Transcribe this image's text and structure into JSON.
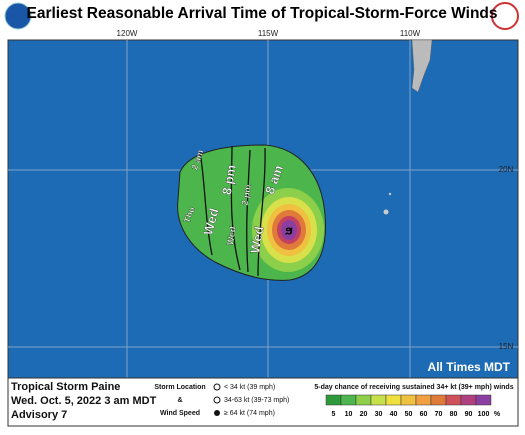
{
  "header": {
    "title": "Earliest Reasonable Arrival Time of Tropical-Storm-Force Winds"
  },
  "map": {
    "lon_labels": [
      "120W",
      "115W",
      "110W"
    ],
    "lat_labels": [
      "20N",
      "15N"
    ],
    "contours": [
      {
        "day": "Thu",
        "time": "2 am"
      },
      {
        "day": "Wed",
        "time": "8 pm"
      },
      {
        "day": "Wed",
        "time": "2 pm"
      },
      {
        "day": "Wed",
        "time": "8 am"
      }
    ],
    "note": "All Times MDT"
  },
  "footer": {
    "storm": "Tropical Storm Paine",
    "date": "Wed. Oct. 5, 2022  3 am MDT",
    "advisory": "Advisory 7",
    "legend": {
      "label_top": "Storm Location",
      "label_mid": "&",
      "label_bottom": "Wind Speed",
      "items": [
        "< 34 kt (39 mph)",
        "34-63 kt (39-73 mph)",
        "≥ 64 kt (74 mph)"
      ]
    },
    "scale": {
      "title": "5-day chance of receiving sustained 34+ kt (39+ mph) winds",
      "labels": [
        "5",
        "10",
        "20",
        "30",
        "40",
        "50",
        "60",
        "70",
        "80",
        "90",
        "100",
        "%"
      ]
    }
  }
}
